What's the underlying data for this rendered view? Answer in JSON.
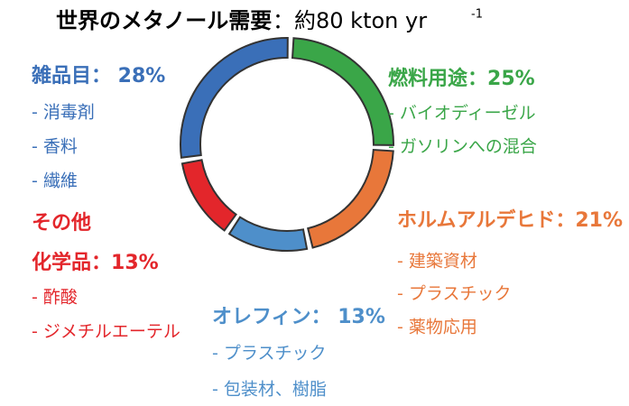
{
  "chart_data": {
    "type": "pie",
    "donut": true,
    "title": {
      "main": "世界のメタノール需要",
      "unit": "：約80 kton yr",
      "sup": "-1"
    },
    "categories": [
      [
        "燃料用途"
      ],
      [
        "ホルムアルデヒド"
      ],
      [
        "オレフィン"
      ],
      [
        "その他",
        "化学品"
      ],
      [
        "雑品目"
      ]
    ],
    "values": [
      25,
      21,
      13,
      13,
      28
    ],
    "value_labels": [
      "：25%",
      "：21%",
      "： 13%",
      "：13%",
      "： 28%"
    ],
    "colors": [
      "#3aa648",
      "#e8773a",
      "#4e8fca",
      "#e3262b",
      "#3a6fb8"
    ],
    "uses": [
      [
        "- バイオディーゼル",
        "- ガソリンへの混合"
      ],
      [
        "- 建築資材",
        "- プラスチック",
        "- 薬物応用"
      ],
      [
        "- プラスチック",
        "- 包装材、樹脂"
      ],
      [
        "- 酢酸",
        "- ジメチルエーテル"
      ],
      [
        "- 消毒剤",
        "- 香料",
        "- 繊維"
      ]
    ]
  }
}
